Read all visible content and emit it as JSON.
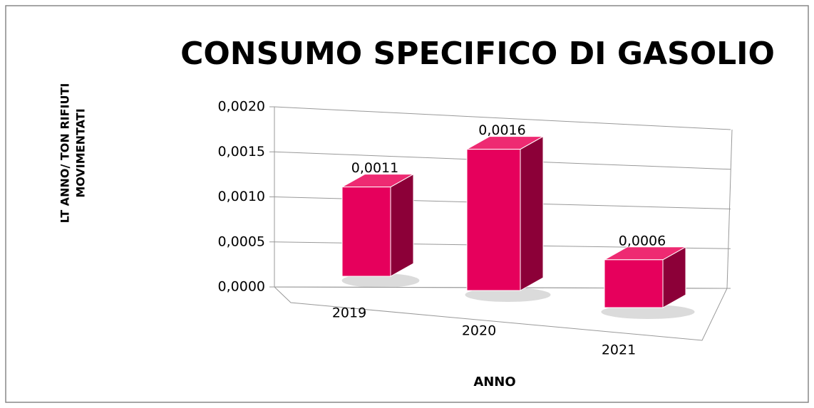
{
  "chart_data": {
    "type": "bar3d",
    "title": "CONSUMO SPECIFICO DI GASOLIO",
    "xlabel": "ANNO",
    "ylabel": [
      "LT ANNO/ TON RIFIUTI",
      "MOVIMENTATI"
    ],
    "categories": [
      "2019",
      "2020",
      "2021"
    ],
    "values": [
      0.0011,
      0.0016,
      0.0006
    ],
    "value_labels": [
      "0,0011",
      "0,0016",
      "0,0006"
    ],
    "color": "#e6005c",
    "ylim": [
      0,
      0.002
    ],
    "yticks": [
      {
        "value": 0,
        "label": "0,0000"
      },
      {
        "value": 0.0005,
        "label": "0,0005"
      },
      {
        "value": 0.001,
        "label": "0,0010"
      },
      {
        "value": 0.0015,
        "label": "0,0015"
      },
      {
        "value": 0.002,
        "label": "0,0020"
      }
    ],
    "grid": true
  }
}
